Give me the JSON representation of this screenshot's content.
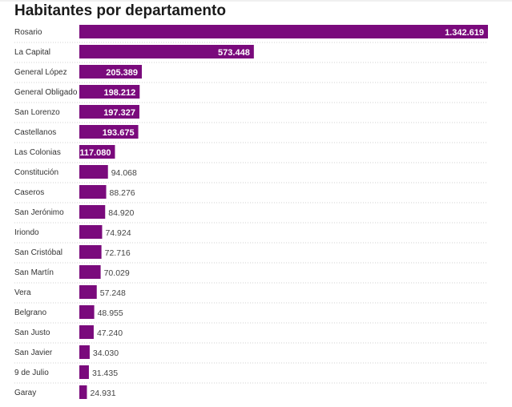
{
  "chart_data": {
    "type": "bar",
    "orientation": "horizontal",
    "title": "Habitantes por departamento",
    "categories": [
      "Rosario",
      "La Capital",
      "General López",
      "General Obligado",
      "San Lorenzo",
      "Castellanos",
      "Las Colonias",
      "Constitución",
      "Caseros",
      "San Jerónimo",
      "Iriondo",
      "San Cristóbal",
      "San Martín",
      "Vera",
      "Belgrano",
      "San Justo",
      "San Javier",
      "9 de Julio",
      "Garay"
    ],
    "values": [
      1342619,
      573448,
      205389,
      198212,
      197327,
      193675,
      117080,
      94068,
      88276,
      84920,
      74924,
      72716,
      70029,
      57248,
      48955,
      47240,
      34030,
      31435,
      24931
    ],
    "data_labels": [
      "1.342.619",
      "573.448",
      "205.389",
      "198.212",
      "197.327",
      "193.675",
      "117.080",
      "94.068",
      "88.276",
      "84.920",
      "74.924",
      "72.716",
      "70.029",
      "57.248",
      "48.955",
      "47.240",
      "34.030",
      "31.435",
      "24.931"
    ],
    "xlim": [
      0,
      1342619
    ],
    "grid": false,
    "bar_color": "#7a0a7c",
    "label_inside_color": "#ffffff",
    "label_outside_color": "#444444"
  }
}
